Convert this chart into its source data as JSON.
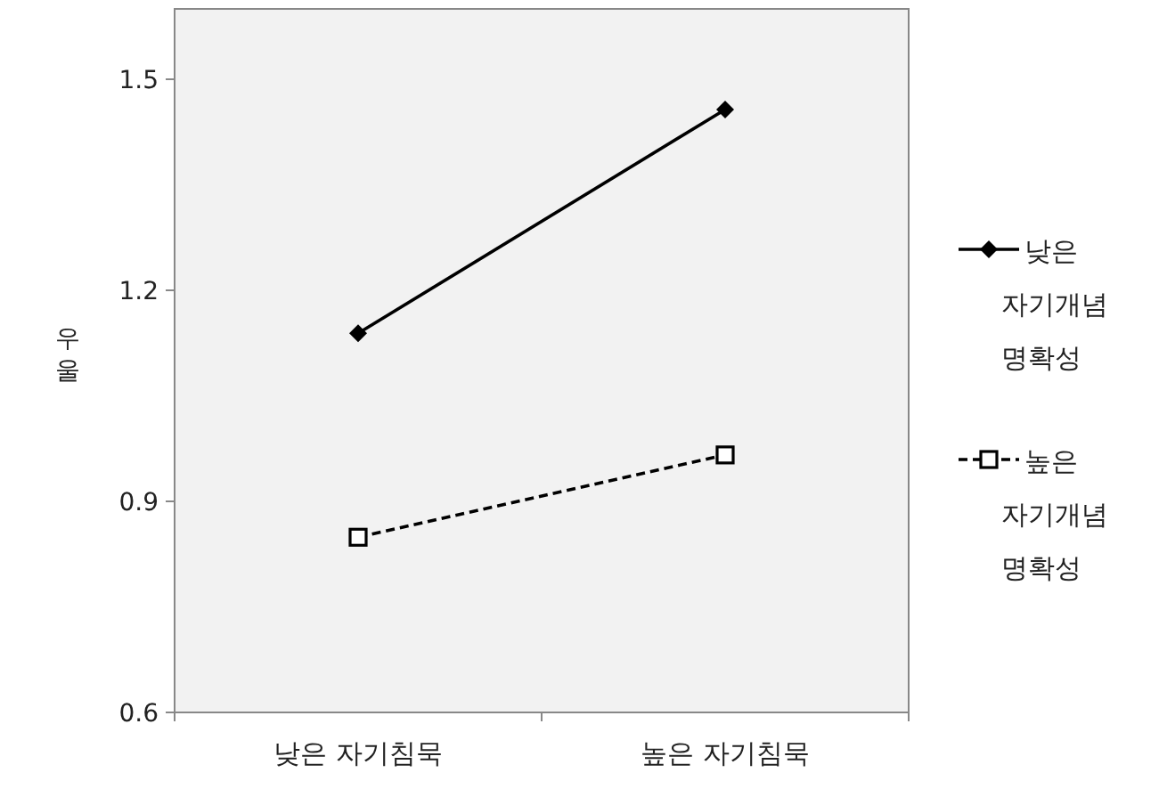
{
  "chart_data": {
    "type": "line",
    "ylabel": "우울",
    "categories": [
      "낮은 자기침묵",
      "높은 자기침묵"
    ],
    "series": [
      {
        "name": "낮은 자기개념 명확성",
        "color": "#000000",
        "values": [
          1.139,
          1.457
        ],
        "marker": "diamond",
        "line_style": "solid"
      },
      {
        "name": "높은 자기개념 명확성",
        "color": "#000000",
        "values": [
          0.849,
          0.966
        ],
        "marker": "square",
        "line_style": "dashed"
      }
    ],
    "ylim": [
      0.6,
      1.6
    ],
    "yticks": [
      {
        "value": 0.6,
        "label": "0.6"
      },
      {
        "value": 0.9,
        "label": "0.9"
      },
      {
        "value": 1.2,
        "label": "1.2"
      },
      {
        "value": 1.5,
        "label": "1.5"
      }
    ],
    "grid": false,
    "legend": "right"
  }
}
